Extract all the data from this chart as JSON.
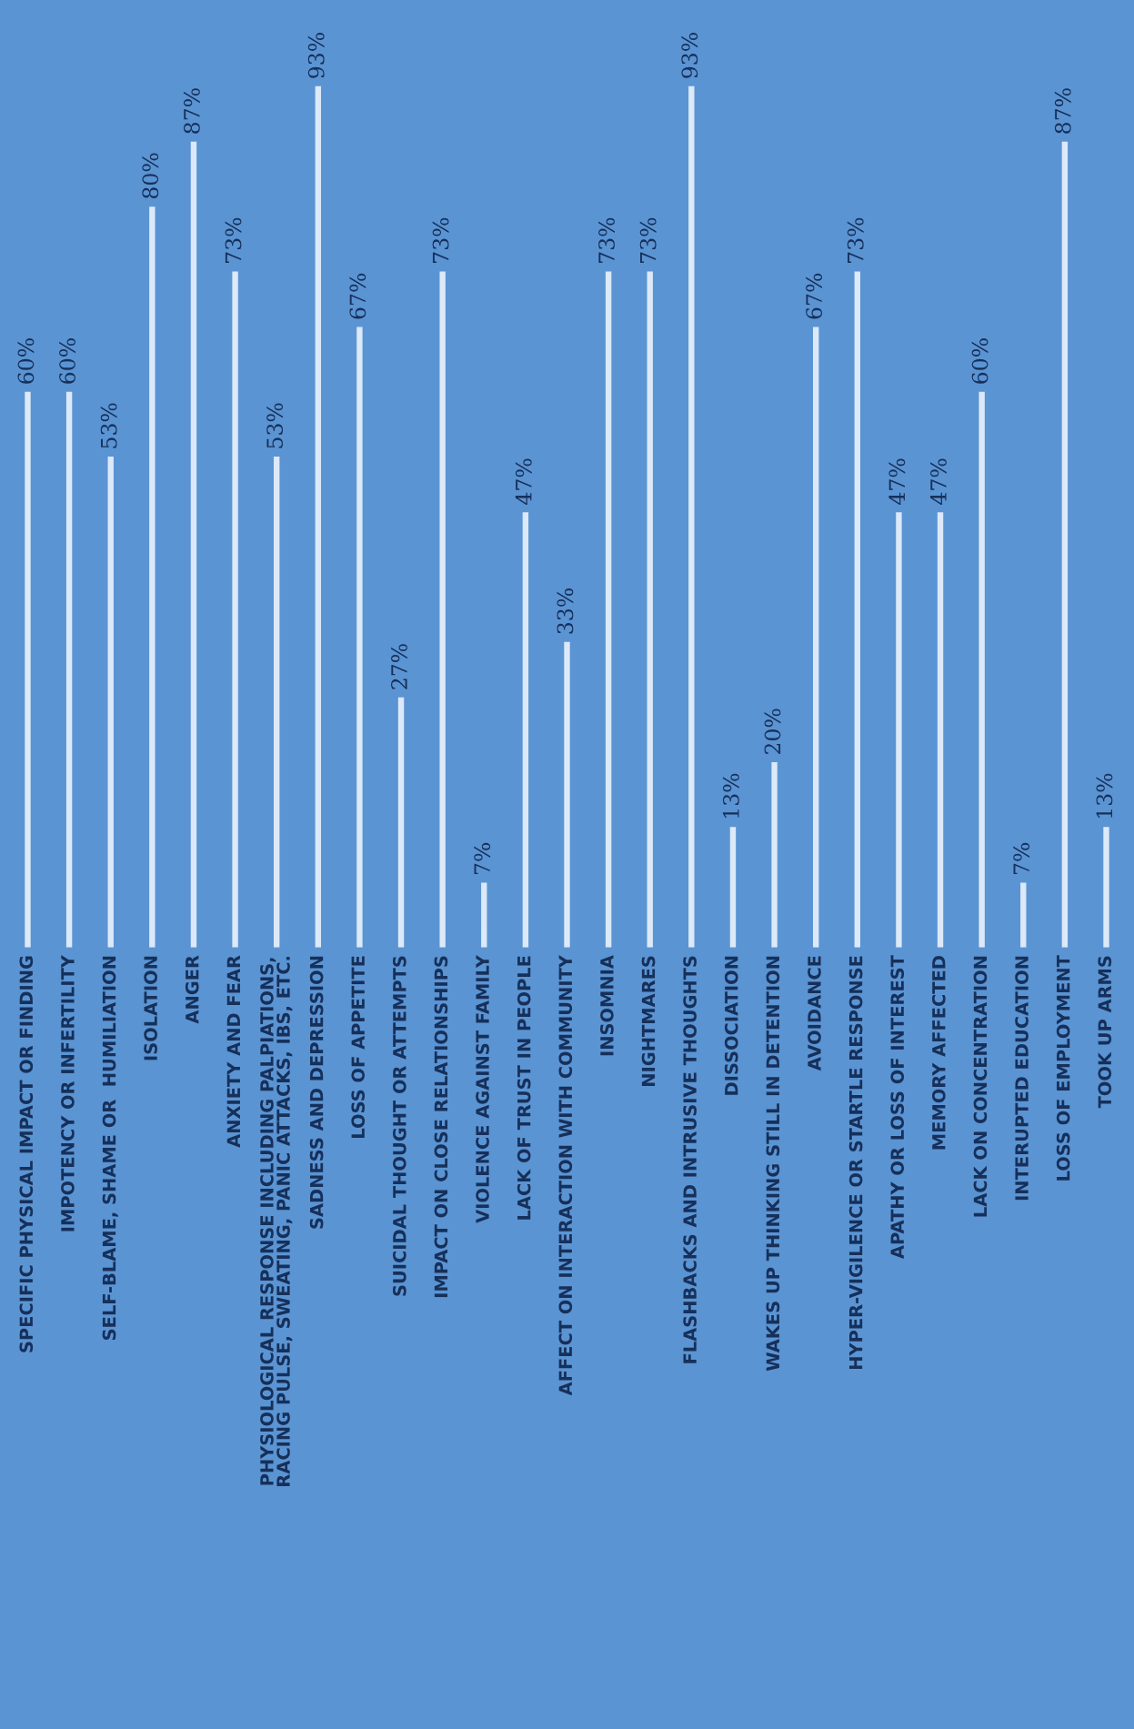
{
  "chart_data": {
    "type": "bar",
    "categories": [
      "SPECIFIC PHYSICAL IMPACT OR FINDING",
      "IMPOTENCY OR INFERTILITY",
      "SELF-BLAME, SHAME OR  HUMILIATION",
      "ISOLATION",
      "ANGER",
      "ANXIETY AND FEAR",
      "PHYSIOLOGICAL RESPONSE INCLUDING PALPIATIONS,\nRACING PULSE, SWEATING, PANIC ATTACKS, IBS, ETC.",
      "SADNESS AND DEPRESSION",
      "LOSS OF APPETITE",
      "SUICIDAL THOUGHT OR ATTEMPTS",
      "IMPACT ON CLOSE RELATIONSHIPS",
      "VIOLENCE AGAINST FAMILY",
      "LACK OF TRUST IN PEOPLE",
      "AFFECT ON INTERACTION WITH COMMUNITY",
      "INSOMNIA",
      "NIGHTMARES",
      "FLASHBACKS AND INTRUSIVE THOUGHTS",
      "DISSOCIATION",
      "WAKES UP THINKING STILL IN DETENTION",
      "AVOIDANCE",
      "HYPER-VIGILENCE OR STARTLE RESPONSE",
      "APATHY OR LOSS OF INTEREST",
      "MEMORY AFFECTED",
      "LACK ON CONCENTRATION",
      "INTERUPTED EDUCATION",
      "LOSS OF EMPLOYMENT",
      "TOOK UP ARMS"
    ],
    "values": [
      60,
      60,
      53,
      80,
      87,
      73,
      53,
      93,
      67,
      27,
      73,
      7,
      47,
      33,
      73,
      73,
      93,
      13,
      20,
      67,
      73,
      47,
      47,
      60,
      7,
      87,
      13
    ],
    "value_labels": [
      "60%",
      "60%",
      "53%",
      "80%",
      "87%",
      "73%",
      "53%",
      "93%",
      "67%",
      "27%",
      "73%",
      "7%",
      "47%",
      "33%",
      "73%",
      "73%",
      "93%",
      "13%",
      "20%",
      "67%",
      "73%",
      "47%",
      "47%",
      "60%",
      "7%",
      "87%",
      "13%"
    ],
    "color": "#dce9f8"
  }
}
